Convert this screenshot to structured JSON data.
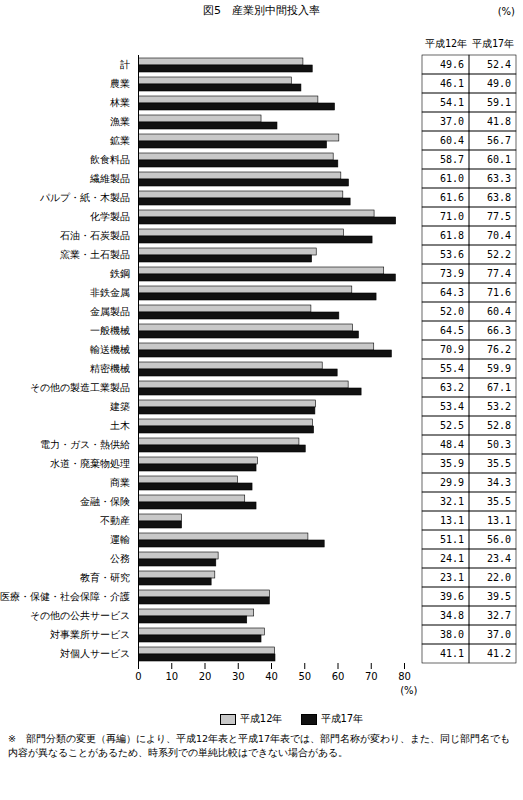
{
  "chart_data": {
    "type": "bar",
    "title": "図5　産業別中間投入率",
    "unit_label": "(%)",
    "orientation": "horizontal",
    "categories": [
      "計",
      "農業",
      "林業",
      "漁業",
      "鉱業",
      "飲食料品",
      "繊維製品",
      "パルプ・紙・木製品",
      "化学製品",
      "石油・石炭製品",
      "窯業・土石製品",
      "鉄鋼",
      "非鉄金属",
      "金属製品",
      "一般機械",
      "輸送機械",
      "精密機械",
      "その他の製造工業製品",
      "建築",
      "土木",
      "電力・ガス・熱供給",
      "水道・廃棄物処理",
      "商業",
      "金融・保険",
      "不動産",
      "運輸",
      "公務",
      "教育・研究",
      "医療・保健・社会保障・介護",
      "その他の公共サービス",
      "対事業所サービス",
      "対個人サービス"
    ],
    "series": [
      {
        "name": "平成12年",
        "color": "#c8c8c8",
        "values": [
          49.6,
          46.1,
          54.1,
          37.0,
          60.4,
          58.7,
          61.0,
          61.6,
          71.0,
          61.8,
          53.6,
          73.9,
          64.3,
          52.0,
          64.5,
          70.9,
          55.4,
          63.2,
          53.4,
          52.5,
          48.4,
          35.9,
          29.9,
          32.1,
          13.1,
          51.1,
          24.1,
          23.1,
          39.6,
          34.8,
          38.0,
          41.1
        ],
        "value_labels": [
          "49.6",
          "46.1",
          "54.1",
          "37.0",
          "60.4",
          "58.7",
          "61.0",
          "61.6",
          "71.0",
          "61.8",
          "53.6",
          "73.9",
          "64.3",
          "52.0",
          "64.5",
          "70.9",
          "55.4",
          "63.2",
          "53.4",
          "52.5",
          "48.4",
          "35.9",
          "29.9",
          "32.1",
          "13.1",
          "51.1",
          "24.1",
          "23.1",
          "39.6",
          "34.8",
          "38.0",
          "41.1"
        ]
      },
      {
        "name": "平成17年",
        "color": "#111111",
        "values": [
          52.4,
          49.0,
          59.1,
          41.8,
          56.7,
          60.1,
          63.3,
          63.8,
          77.5,
          70.4,
          52.2,
          77.4,
          71.6,
          60.4,
          66.3,
          76.2,
          59.9,
          67.1,
          53.2,
          52.8,
          50.3,
          35.5,
          34.3,
          35.5,
          13.1,
          56.0,
          23.4,
          22.0,
          39.5,
          32.7,
          37.0,
          41.2
        ],
        "value_labels": [
          "52.4",
          "49.0",
          "59.1",
          "41.8",
          "56.7",
          "60.1",
          "63.3",
          "63.8",
          "77.5",
          "70.4",
          "52.2",
          "77.4",
          "71.6",
          "60.4",
          "66.3",
          "76.2",
          "59.9",
          "67.1",
          "53.2",
          "52.8",
          "50.3",
          "35.5",
          "34.3",
          "35.5",
          "13.1",
          "56.0",
          "23.4",
          "22.0",
          "39.5",
          "32.7",
          "37.0",
          "41.2"
        ]
      }
    ],
    "xlim": [
      0,
      80
    ],
    "xticks": [
      0,
      10,
      20,
      30,
      40,
      50,
      60,
      70,
      80
    ],
    "xlabel": "(%)",
    "grid": false,
    "legend": "bottom",
    "data_labels": true,
    "note": "※　部門分類の変更（再編）により、平成12年表と平成17年表では、部門名称が変わり、また、同じ部門名でも内容が異なることがあるため、時系列での単純比較はできない場合がある。"
  }
}
